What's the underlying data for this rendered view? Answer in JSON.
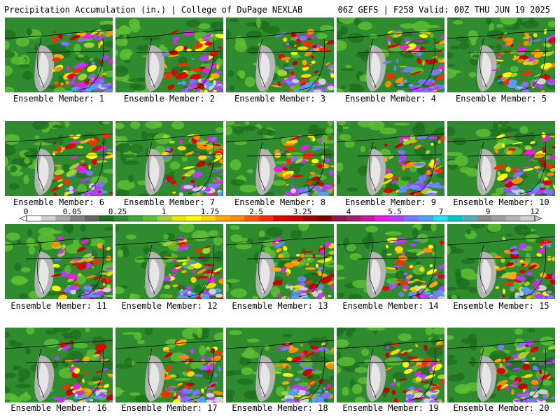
{
  "header": {
    "left": "Precipitation Accumulation (in.) | College of DuPage NEXLAB",
    "right": "06Z GEFS | F258 Valid: 00Z THU JUN 19 2025"
  },
  "panels": [
    "Ensemble Member: 1",
    "Ensemble Member: 2",
    "Ensemble Member: 3",
    "Ensemble Member: 4",
    "Ensemble Member: 5",
    "Ensemble Member: 6",
    "Ensemble Member: 7",
    "Ensemble Member: 8",
    "Ensemble Member: 9",
    "Ensemble Member: 10",
    "Ensemble Member: 11",
    "Ensemble Member: 12",
    "Ensemble Member: 13",
    "Ensemble Member: 14",
    "Ensemble Member: 15",
    "Ensemble Member: 16",
    "Ensemble Member: 17",
    "Ensemble Member: 18",
    "Ensemble Member: 19",
    "Ensemble Member: 20"
  ],
  "colorbar": {
    "labels": [
      "0",
      "0.05",
      "0.25",
      "1",
      "1.75",
      "2.5",
      "3.25",
      "4",
      "5.5",
      "7",
      "9",
      "12"
    ],
    "colors": [
      "#ffffff",
      "#d0d0d0",
      "#a8a8a8",
      "#808080",
      "#646464",
      "#1e6e1e",
      "#2e8b2e",
      "#3ea83e",
      "#5fc032",
      "#a0d232",
      "#e6e600",
      "#ffff00",
      "#ffd700",
      "#ffaa00",
      "#ff8c00",
      "#ff5a00",
      "#ff2a00",
      "#e60000",
      "#c80000",
      "#a00000",
      "#800000",
      "#8b1a50",
      "#a0206e",
      "#c01ea0",
      "#e61ee6",
      "#b43cff",
      "#7878ff",
      "#50a0ff",
      "#1ee6ff",
      "#00c8c8",
      "#50b4b4",
      "#8c8c8c",
      "#a0a0a0",
      "#b4b4b4",
      "#d0d0d0"
    ]
  }
}
